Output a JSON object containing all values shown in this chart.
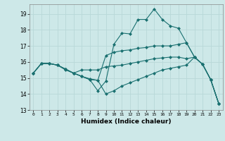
{
  "title": "",
  "xlabel": "Humidex (Indice chaleur)",
  "ylabel": "",
  "bg_color": "#cde8e8",
  "grid_color": "#b8d8d8",
  "line_color": "#1a7070",
  "xlim": [
    -0.5,
    23.5
  ],
  "ylim": [
    13,
    19.6
  ],
  "yticks": [
    13,
    14,
    15,
    16,
    17,
    18,
    19
  ],
  "xticks": [
    0,
    1,
    2,
    3,
    4,
    5,
    6,
    7,
    8,
    9,
    10,
    11,
    12,
    13,
    14,
    15,
    16,
    17,
    18,
    19,
    20,
    21,
    22,
    23
  ],
  "series": [
    [
      15.3,
      15.9,
      15.9,
      15.8,
      15.5,
      15.3,
      15.1,
      14.9,
      14.2,
      14.8,
      17.1,
      17.8,
      17.75,
      18.65,
      18.65,
      19.3,
      18.65,
      18.25,
      18.1,
      17.2,
      16.3,
      15.85,
      14.9,
      13.4
    ],
    [
      15.3,
      15.9,
      15.9,
      15.8,
      15.55,
      15.3,
      15.1,
      14.95,
      14.85,
      16.4,
      16.6,
      16.7,
      16.75,
      16.85,
      16.9,
      17.0,
      17.0,
      17.0,
      17.1,
      17.2,
      16.3,
      15.85,
      14.9,
      13.4
    ],
    [
      15.3,
      15.9,
      15.9,
      15.8,
      15.55,
      15.3,
      15.5,
      15.5,
      15.5,
      15.7,
      15.75,
      15.8,
      15.9,
      16.0,
      16.1,
      16.2,
      16.25,
      16.3,
      16.3,
      16.2,
      16.3,
      15.85,
      14.9,
      13.4
    ],
    [
      15.3,
      15.9,
      15.9,
      15.8,
      15.55,
      15.3,
      15.1,
      14.9,
      14.85,
      14.0,
      14.2,
      14.5,
      14.7,
      14.9,
      15.1,
      15.3,
      15.5,
      15.6,
      15.7,
      15.8,
      16.3,
      15.85,
      14.9,
      13.4
    ]
  ],
  "marker": "D",
  "markersize": 2,
  "linewidth": 0.8
}
